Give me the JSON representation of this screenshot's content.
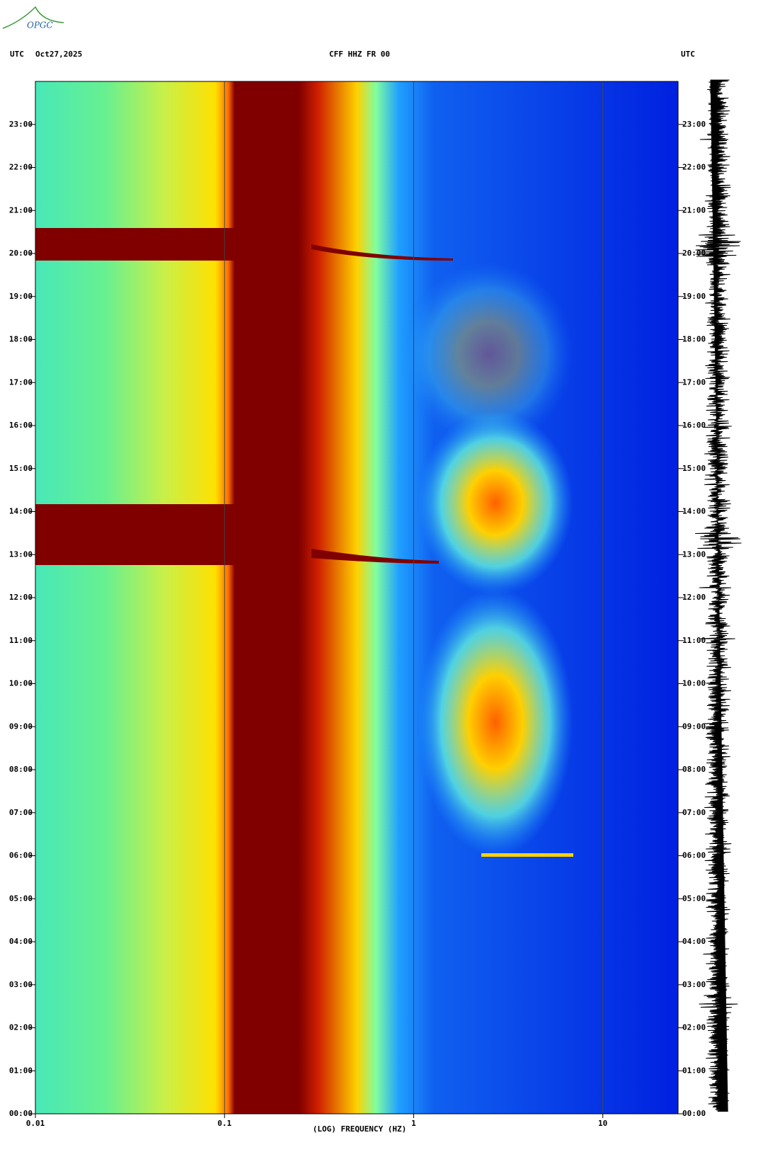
{
  "logo": "OPGC",
  "chart_data": {
    "type": "spectrogram",
    "header_left": "UTC",
    "date": "Oct27,2025",
    "title": "CFF HHZ FR 00",
    "header_right": "UTC",
    "xlabel": "(LOG) FREQUENCY (HZ)",
    "xscale": "log",
    "xlim": [
      0.01,
      25
    ],
    "xticks": [
      0.01,
      0.1,
      1,
      10
    ],
    "grid": true,
    "ylim": [
      0,
      24
    ],
    "yticks": [
      {
        "value": 0,
        "label": "00:00"
      },
      {
        "value": 1,
        "label": "01:00"
      },
      {
        "value": 2,
        "label": "02:00"
      },
      {
        "value": 3,
        "label": "03:00"
      },
      {
        "value": 4,
        "label": "04:00"
      },
      {
        "value": 5,
        "label": "05:00"
      },
      {
        "value": 6,
        "label": "06:00"
      },
      {
        "value": 7,
        "label": "07:00"
      },
      {
        "value": 8,
        "label": "08:00"
      },
      {
        "value": 9,
        "label": "09:00"
      },
      {
        "value": 10,
        "label": "10:00"
      },
      {
        "value": 11,
        "label": "11:00"
      },
      {
        "value": 12,
        "label": "12:00"
      },
      {
        "value": 13,
        "label": "13:00"
      },
      {
        "value": 14,
        "label": "14:00"
      },
      {
        "value": 15,
        "label": "15:00"
      },
      {
        "value": 16,
        "label": "16:00"
      },
      {
        "value": 17,
        "label": "17:00"
      },
      {
        "value": 18,
        "label": "18:00"
      },
      {
        "value": 19,
        "label": "19:00"
      },
      {
        "value": 20,
        "label": "20:00"
      },
      {
        "value": 21,
        "label": "21:00"
      },
      {
        "value": 22,
        "label": "22:00"
      },
      {
        "value": 23,
        "label": "23:00"
      }
    ]
  }
}
